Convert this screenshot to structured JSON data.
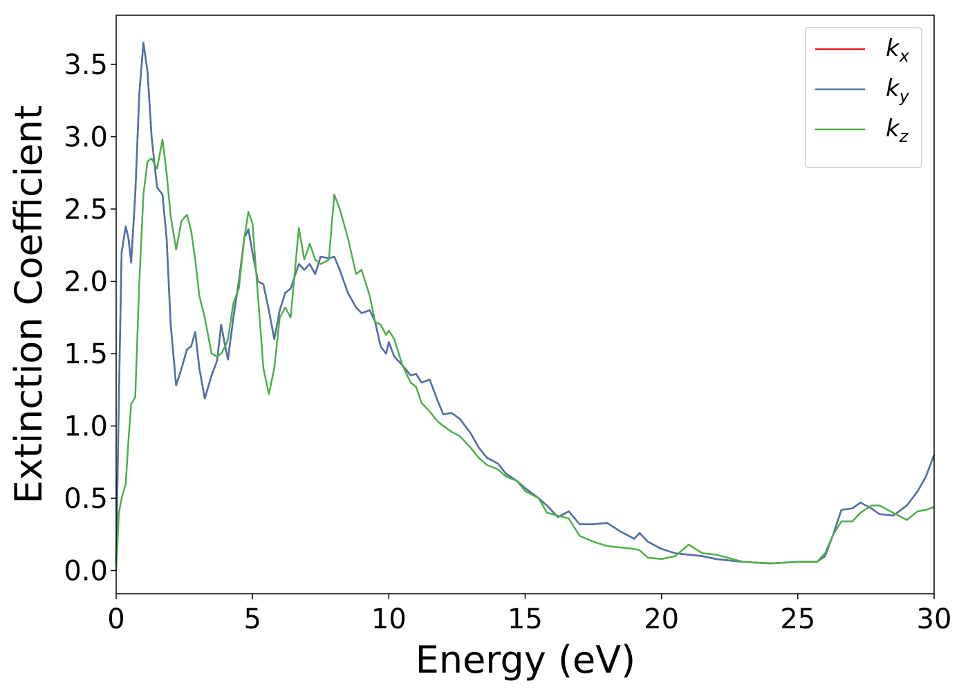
{
  "chart_data": {
    "type": "line",
    "xlabel": "Energy (eV)",
    "ylabel": "Extinction Coefficient",
    "xlim": [
      0,
      30
    ],
    "xticks": [
      0,
      5,
      10,
      15,
      20,
      25,
      30
    ],
    "ylim": [
      -0.16,
      3.84
    ],
    "yticks": [
      {
        "value": 0,
        "label": "0.0"
      },
      0.5,
      {
        "value": 1,
        "label": "1.0"
      },
      1.5,
      {
        "value": 2,
        "label": "2.0"
      },
      2.5,
      {
        "value": 3,
        "label": "3.0"
      },
      3.5
    ],
    "legend": "upper right",
    "x": [
      0,
      0.1,
      0.2,
      0.35,
      0.45,
      0.55,
      0.7,
      0.85,
      1.0,
      1.15,
      1.3,
      1.5,
      1.7,
      1.85,
      2.0,
      2.2,
      2.4,
      2.6,
      2.75,
      2.9,
      3.05,
      3.25,
      3.5,
      3.7,
      3.85,
      4.0,
      4.1,
      4.3,
      4.5,
      4.7,
      4.85,
      5.0,
      5.2,
      5.4,
      5.6,
      5.8,
      6.0,
      6.2,
      6.4,
      6.7,
      6.9,
      7.1,
      7.3,
      7.5,
      7.8,
      8.0,
      8.2,
      8.5,
      8.8,
      9.0,
      9.3,
      9.5,
      9.7,
      9.9,
      10.0,
      10.2,
      10.5,
      10.8,
      11.0,
      11.2,
      11.5,
      11.8,
      12.0,
      12.3,
      12.6,
      13.0,
      13.3,
      13.6,
      14.0,
      14.3,
      14.7,
      15.0,
      15.5,
      15.8,
      16.2,
      16.6,
      17.0,
      17.5,
      18.0,
      18.5,
      19.0,
      19.2,
      19.5,
      20.0,
      20.5,
      21.0,
      21.5,
      22.0,
      23.0,
      24.0,
      25.0,
      25.7,
      26.0,
      26.3,
      26.6,
      27.0,
      27.3,
      27.7,
      28.0,
      28.5,
      29.0,
      29.4,
      29.7,
      30.0
    ],
    "series": [
      {
        "name": "kx",
        "color": "#e41a1c",
        "values": [
          0.05,
          1.2,
          2.2,
          2.38,
          2.3,
          2.13,
          2.6,
          3.3,
          3.65,
          3.45,
          3.0,
          2.65,
          2.6,
          2.3,
          1.7,
          1.28,
          1.4,
          1.53,
          1.55,
          1.65,
          1.4,
          1.19,
          1.35,
          1.45,
          1.7,
          1.55,
          1.46,
          1.75,
          2.0,
          2.3,
          2.36,
          2.2,
          2.0,
          1.98,
          1.8,
          1.6,
          1.8,
          1.92,
          1.95,
          2.12,
          2.08,
          2.12,
          2.05,
          2.17,
          2.16,
          2.17,
          2.08,
          1.92,
          1.82,
          1.78,
          1.8,
          1.72,
          1.55,
          1.5,
          1.58,
          1.48,
          1.42,
          1.35,
          1.36,
          1.3,
          1.32,
          1.17,
          1.08,
          1.09,
          1.05,
          0.95,
          0.85,
          0.78,
          0.74,
          0.67,
          0.62,
          0.57,
          0.5,
          0.45,
          0.37,
          0.41,
          0.32,
          0.32,
          0.33,
          0.27,
          0.22,
          0.26,
          0.2,
          0.15,
          0.12,
          0.11,
          0.1,
          0.08,
          0.06,
          0.05,
          0.06,
          0.06,
          0.1,
          0.25,
          0.42,
          0.43,
          0.47,
          0.43,
          0.39,
          0.38,
          0.45,
          0.55,
          0.65,
          0.8
        ]
      },
      {
        "name": "ky",
        "color": "#4a74aa",
        "values": [
          0.05,
          1.2,
          2.2,
          2.38,
          2.3,
          2.13,
          2.6,
          3.3,
          3.65,
          3.45,
          3.0,
          2.65,
          2.6,
          2.3,
          1.7,
          1.28,
          1.4,
          1.53,
          1.55,
          1.65,
          1.4,
          1.19,
          1.35,
          1.45,
          1.7,
          1.55,
          1.46,
          1.75,
          2.0,
          2.3,
          2.36,
          2.2,
          2.0,
          1.98,
          1.8,
          1.6,
          1.8,
          1.92,
          1.95,
          2.12,
          2.08,
          2.12,
          2.05,
          2.17,
          2.16,
          2.17,
          2.08,
          1.92,
          1.82,
          1.78,
          1.8,
          1.72,
          1.55,
          1.5,
          1.58,
          1.48,
          1.42,
          1.35,
          1.36,
          1.3,
          1.32,
          1.17,
          1.08,
          1.09,
          1.05,
          0.95,
          0.85,
          0.78,
          0.74,
          0.67,
          0.62,
          0.57,
          0.5,
          0.45,
          0.37,
          0.41,
          0.32,
          0.32,
          0.33,
          0.27,
          0.22,
          0.26,
          0.2,
          0.15,
          0.12,
          0.11,
          0.1,
          0.08,
          0.06,
          0.05,
          0.06,
          0.06,
          0.1,
          0.25,
          0.42,
          0.43,
          0.47,
          0.43,
          0.39,
          0.38,
          0.45,
          0.55,
          0.65,
          0.8
        ]
      },
      {
        "name": "kz",
        "color": "#4daf4a",
        "values": [
          0.0,
          0.4,
          0.5,
          0.6,
          0.9,
          1.15,
          1.2,
          2.0,
          2.6,
          2.83,
          2.85,
          2.78,
          2.98,
          2.75,
          2.45,
          2.22,
          2.42,
          2.46,
          2.35,
          2.15,
          1.9,
          1.75,
          1.5,
          1.48,
          1.5,
          1.55,
          1.6,
          1.85,
          1.95,
          2.3,
          2.48,
          2.4,
          1.9,
          1.4,
          1.22,
          1.4,
          1.75,
          1.82,
          1.75,
          2.37,
          2.15,
          2.26,
          2.15,
          2.12,
          2.15,
          2.6,
          2.5,
          2.3,
          2.05,
          2.08,
          1.9,
          1.72,
          1.7,
          1.63,
          1.66,
          1.6,
          1.42,
          1.3,
          1.27,
          1.16,
          1.1,
          1.03,
          1.0,
          0.96,
          0.93,
          0.85,
          0.78,
          0.73,
          0.7,
          0.65,
          0.62,
          0.55,
          0.5,
          0.4,
          0.38,
          0.36,
          0.24,
          0.2,
          0.17,
          0.16,
          0.15,
          0.14,
          0.09,
          0.08,
          0.1,
          0.18,
          0.12,
          0.11,
          0.06,
          0.05,
          0.06,
          0.06,
          0.12,
          0.25,
          0.34,
          0.34,
          0.4,
          0.45,
          0.45,
          0.4,
          0.35,
          0.41,
          0.42,
          0.44
        ]
      }
    ]
  }
}
